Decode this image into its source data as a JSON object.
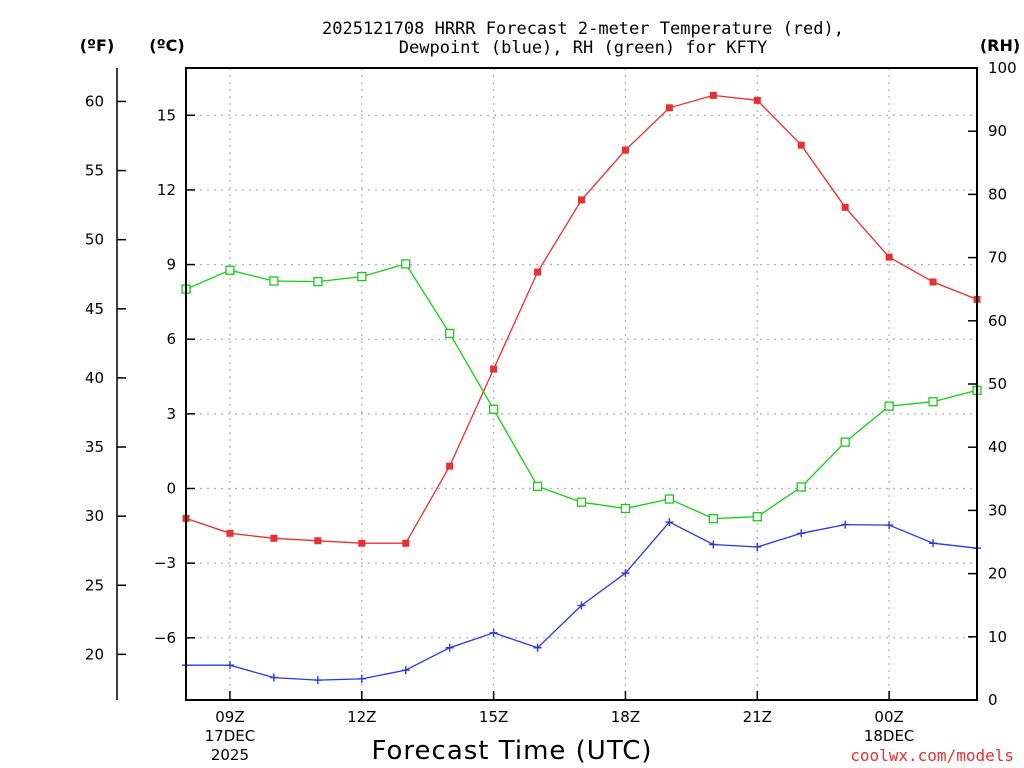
{
  "chart_data": {
    "type": "line",
    "title_line1": "2025121708 HRRR Forecast 2-meter Temperature (red),",
    "title_line2": "Dewpoint (blue), RH (green) for KFTY",
    "xlabel": "Forecast Time (UTC)",
    "credit": "coolwx.com/models",
    "units": {
      "fahrenheit": "(ºF)",
      "celsius": "(ºC)",
      "rh": "(RH)"
    },
    "colors": {
      "temperature": "#e83030",
      "dewpoint": "#2838e0",
      "rh": "#10d010"
    },
    "x_hours": [
      8,
      9,
      10,
      11,
      12,
      13,
      14,
      15,
      16,
      17,
      18,
      19,
      20,
      21,
      22,
      23,
      24,
      25,
      26
    ],
    "x_range": [
      8,
      26
    ],
    "x_ticks": [
      {
        "hour": 9,
        "label": "09Z",
        "date1": "17DEC",
        "date2": "2025"
      },
      {
        "hour": 12,
        "label": "12Z"
      },
      {
        "hour": 15,
        "label": "15Z"
      },
      {
        "hour": 18,
        "label": "18Z"
      },
      {
        "hour": 21,
        "label": "21Z"
      },
      {
        "hour": 24,
        "label": "00Z",
        "date1": "18DEC"
      }
    ],
    "celsius_axis": {
      "range": [
        -8.5,
        16.9
      ],
      "ticks": [
        -6,
        -3,
        0,
        3,
        6,
        9,
        12,
        15
      ],
      "tick_labels": [
        "−6",
        "−3",
        "0",
        "3",
        "6",
        "9",
        "12",
        "15"
      ]
    },
    "fahrenheit_axis": {
      "ticks": [
        20,
        25,
        30,
        35,
        40,
        45,
        50,
        55,
        60
      ],
      "tick_labels": [
        "20",
        "25",
        "30",
        "35",
        "40",
        "45",
        "50",
        "55",
        "60"
      ]
    },
    "rh_axis": {
      "range": [
        0,
        100
      ],
      "ticks": [
        0,
        10,
        20,
        30,
        40,
        50,
        60,
        70,
        80,
        90,
        100
      ],
      "tick_labels": [
        "0",
        "10",
        "20",
        "30",
        "40",
        "50",
        "60",
        "70",
        "80",
        "90",
        "100"
      ]
    },
    "series": [
      {
        "name": "Temperature",
        "unit": "C",
        "values": [
          -1.2,
          -1.8,
          -2.0,
          -2.1,
          -2.2,
          -2.2,
          0.9,
          4.8,
          8.7,
          11.6,
          13.6,
          15.3,
          15.8,
          15.6,
          13.8,
          11.3,
          9.3,
          8.3,
          7.6
        ]
      },
      {
        "name": "Dewpoint",
        "unit": "C",
        "values": [
          -7.1,
          -7.1,
          -7.6,
          -7.7,
          -7.65,
          -7.3,
          -6.4,
          -5.8,
          -6.4,
          -4.7,
          -3.4,
          -1.35,
          -2.25,
          -2.35,
          -1.8,
          -1.45,
          -1.47,
          -2.2,
          -2.4
        ]
      },
      {
        "name": "RH",
        "unit": "%",
        "values": [
          65,
          68,
          66.3,
          66.2,
          67,
          69,
          58,
          46,
          33.8,
          31.3,
          30.3,
          31.8,
          28.7,
          29,
          33.7,
          40.8,
          46.5,
          47.2,
          49
        ]
      }
    ]
  }
}
